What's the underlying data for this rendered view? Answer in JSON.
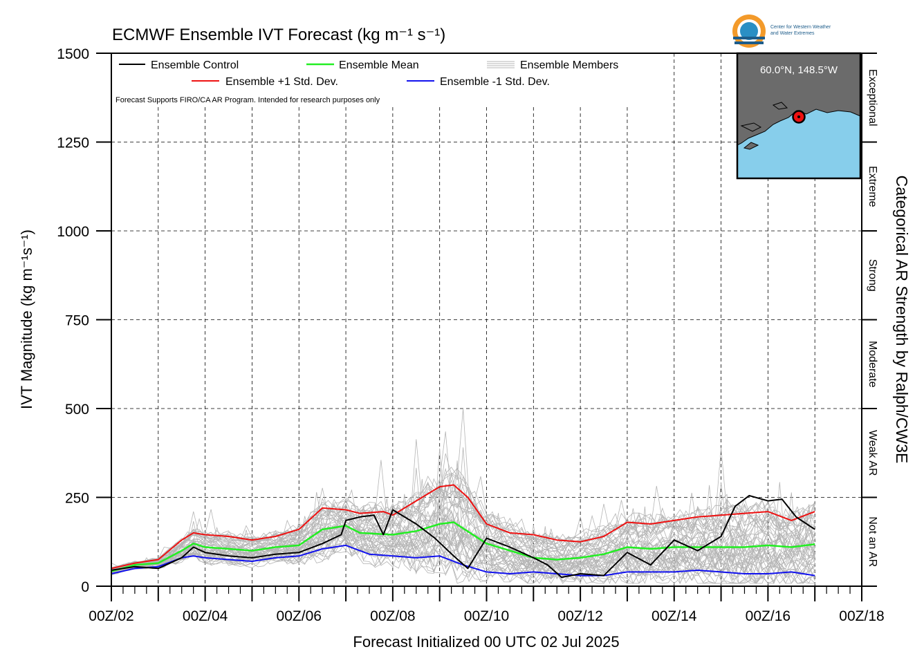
{
  "chart_data": {
    "type": "line",
    "title": "ECMWF Ensemble IVT Forecast (kg m⁻¹ s⁻¹)",
    "xlabel": "Forecast Initialized 00 UTC 02 Jul 2025",
    "ylabel": "IVT Magnitude (kg m⁻¹s⁻¹)",
    "right_axis_title": "Categorical AR Strength by Ralph/CW3E",
    "xlim": [
      0,
      16
    ],
    "ylim": [
      0,
      1500
    ],
    "x_ticks": [
      "00Z/02",
      "00Z/04",
      "00Z/06",
      "00Z/08",
      "00Z/10",
      "00Z/12",
      "00Z/14",
      "00Z/16",
      "00Z/18"
    ],
    "y_ticks": [
      0,
      250,
      500,
      750,
      1000,
      1250,
      1500
    ],
    "grid": true,
    "note": "Forecast Supports FIRO/CA AR Program. Intended for research purposes only",
    "categories_ar": [
      {
        "label": "Not an AR",
        "from": 0,
        "to": 250
      },
      {
        "label": "Weak AR",
        "from": 250,
        "to": 500
      },
      {
        "label": "Moderate",
        "from": 500,
        "to": 750
      },
      {
        "label": "Strong",
        "from": 750,
        "to": 1000
      },
      {
        "label": "Extreme",
        "from": 1000,
        "to": 1250
      },
      {
        "label": "Exceptional",
        "from": 1250,
        "to": 1500
      }
    ],
    "legend": [
      {
        "name": "Ensemble Control",
        "color": "#000000"
      },
      {
        "name": "Ensemble Mean",
        "color": "#22ee22"
      },
      {
        "name": "Ensemble Members",
        "color": "#b4b4b4"
      },
      {
        "name": "Ensemble +1 Std. Dev.",
        "color": "#ee1111"
      },
      {
        "name": "Ensemble -1 Std. Dev.",
        "color": "#1111ee"
      }
    ],
    "series": [
      {
        "name": "Ensemble Control",
        "color": "#000000",
        "points": [
          [
            0,
            45
          ],
          [
            0.5,
            55
          ],
          [
            1,
            50
          ],
          [
            1.5,
            80
          ],
          [
            1.75,
            110
          ],
          [
            2,
            95
          ],
          [
            2.5,
            85
          ],
          [
            3,
            80
          ],
          [
            3.5,
            90
          ],
          [
            4,
            95
          ],
          [
            4.5,
            120
          ],
          [
            4.9,
            145
          ],
          [
            5,
            185
          ],
          [
            5.3,
            195
          ],
          [
            5.6,
            200
          ],
          [
            5.8,
            145
          ],
          [
            6,
            215
          ],
          [
            6.5,
            175
          ],
          [
            6.9,
            135
          ],
          [
            7.3,
            85
          ],
          [
            7.6,
            50
          ],
          [
            8,
            135
          ],
          [
            8.5,
            110
          ],
          [
            9,
            80
          ],
          [
            9.3,
            60
          ],
          [
            9.6,
            25
          ],
          [
            10,
            35
          ],
          [
            10.5,
            30
          ],
          [
            11,
            95
          ],
          [
            11.5,
            60
          ],
          [
            12,
            130
          ],
          [
            12.5,
            100
          ],
          [
            13,
            140
          ],
          [
            13.3,
            225
          ],
          [
            13.6,
            255
          ],
          [
            14,
            240
          ],
          [
            14.3,
            245
          ],
          [
            14.6,
            195
          ],
          [
            15,
            160
          ]
        ]
      },
      {
        "name": "Ensemble Mean",
        "color": "#22ee22",
        "points": [
          [
            0,
            42
          ],
          [
            0.5,
            60
          ],
          [
            1,
            65
          ],
          [
            1.5,
            100
          ],
          [
            1.75,
            120
          ],
          [
            2,
            110
          ],
          [
            2.5,
            105
          ],
          [
            3,
            100
          ],
          [
            3.5,
            110
          ],
          [
            4,
            115
          ],
          [
            4.5,
            160
          ],
          [
            5,
            170
          ],
          [
            5.3,
            150
          ],
          [
            6,
            145
          ],
          [
            6.5,
            155
          ],
          [
            7,
            175
          ],
          [
            7.3,
            180
          ],
          [
            8,
            120
          ],
          [
            8.5,
            100
          ],
          [
            9,
            80
          ],
          [
            9.5,
            75
          ],
          [
            10,
            80
          ],
          [
            10.5,
            90
          ],
          [
            11,
            110
          ],
          [
            11.5,
            105
          ],
          [
            12,
            110
          ],
          [
            12.5,
            110
          ],
          [
            13,
            110
          ],
          [
            13.5,
            110
          ],
          [
            14,
            115
          ],
          [
            14.5,
            110
          ],
          [
            15,
            118
          ]
        ]
      },
      {
        "name": "Ensemble +1 Std. Dev.",
        "color": "#ee1111",
        "points": [
          [
            0,
            50
          ],
          [
            0.5,
            65
          ],
          [
            1,
            75
          ],
          [
            1.5,
            130
          ],
          [
            1.75,
            150
          ],
          [
            2,
            145
          ],
          [
            2.5,
            140
          ],
          [
            3,
            130
          ],
          [
            3.5,
            140
          ],
          [
            4,
            160
          ],
          [
            4.5,
            220
          ],
          [
            5,
            215
          ],
          [
            5.3,
            205
          ],
          [
            5.8,
            210
          ],
          [
            6,
            200
          ],
          [
            6.5,
            240
          ],
          [
            7,
            280
          ],
          [
            7.3,
            285
          ],
          [
            7.6,
            250
          ],
          [
            8,
            175
          ],
          [
            8.5,
            150
          ],
          [
            9,
            145
          ],
          [
            9.5,
            130
          ],
          [
            10,
            125
          ],
          [
            10.5,
            140
          ],
          [
            11,
            180
          ],
          [
            11.5,
            175
          ],
          [
            12,
            185
          ],
          [
            12.5,
            195
          ],
          [
            13,
            200
          ],
          [
            13.5,
            205
          ],
          [
            14,
            210
          ],
          [
            14.5,
            185
          ],
          [
            15,
            210
          ]
        ]
      },
      {
        "name": "Ensemble -1 Std. Dev.",
        "color": "#1111ee",
        "points": [
          [
            0,
            35
          ],
          [
            0.5,
            50
          ],
          [
            1,
            55
          ],
          [
            1.5,
            80
          ],
          [
            1.75,
            85
          ],
          [
            2,
            80
          ],
          [
            2.5,
            75
          ],
          [
            3,
            70
          ],
          [
            3.5,
            80
          ],
          [
            4,
            85
          ],
          [
            4.5,
            105
          ],
          [
            5,
            115
          ],
          [
            5.5,
            90
          ],
          [
            6,
            85
          ],
          [
            6.5,
            80
          ],
          [
            7,
            85
          ],
          [
            7.5,
            60
          ],
          [
            8,
            40
          ],
          [
            8.5,
            35
          ],
          [
            9,
            40
          ],
          [
            9.5,
            35
          ],
          [
            10,
            30
          ],
          [
            10.5,
            30
          ],
          [
            11,
            40
          ],
          [
            11.5,
            40
          ],
          [
            12,
            40
          ],
          [
            12.5,
            45
          ],
          [
            13,
            40
          ],
          [
            13.5,
            35
          ],
          [
            14,
            35
          ],
          [
            14.5,
            40
          ],
          [
            15,
            30
          ]
        ]
      }
    ]
  },
  "inset": {
    "location": "60.0°N, 148.5°W",
    "land_color": "#6b6b6b",
    "ocean_color": "#87ceeb"
  },
  "logo": {
    "line1": "Center for Western Weather",
    "line2": "and Water Extremes"
  }
}
